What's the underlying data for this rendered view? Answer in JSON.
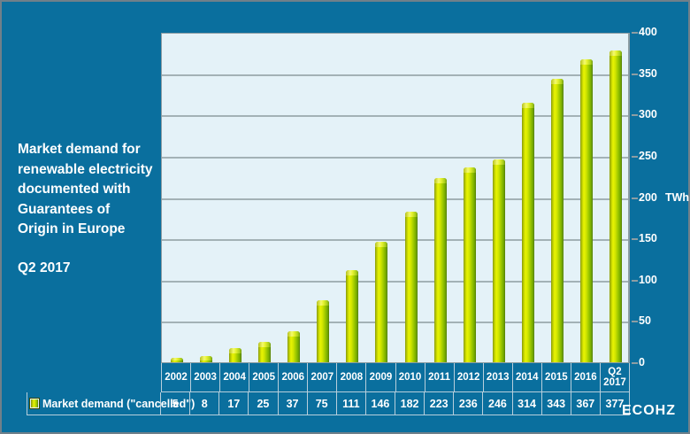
{
  "title": {
    "main": "Market demand for\nrenewable electricity\ndocumented with\nGuarantees of\nOrigin in Europe",
    "period": "Q2 2017"
  },
  "legend": {
    "label": "Market demand (\"cancelled\")"
  },
  "y_axis": {
    "unit": "TWh",
    "tick_values": [
      0,
      50,
      100,
      150,
      200,
      250,
      300,
      350,
      400
    ]
  },
  "logo": "ECOHZ",
  "colors": {
    "background": "#0a6f9e",
    "plot_background": "#e4f2f8",
    "gridline": "#a3b2b6",
    "bar_bright": "#e8f403",
    "bar_dark": "#537c04",
    "table_border": "#b8cfdc",
    "text": "#ffffff"
  },
  "chart_data": {
    "type": "bar",
    "title": "Market demand for renewable electricity documented with Guarantees of Origin in Europe",
    "subtitle": "Q2 2017",
    "categories": [
      "2002",
      "2003",
      "2004",
      "2005",
      "2006",
      "2007",
      "2008",
      "2009",
      "2010",
      "2011",
      "2012",
      "2013",
      "2014",
      "2015",
      "2016",
      "Q2 2017"
    ],
    "series": [
      {
        "name": "Market demand (\"cancelled\")",
        "values": [
          5,
          8,
          17,
          25,
          37,
          75,
          111,
          146,
          182,
          223,
          236,
          246,
          314,
          343,
          367,
          377
        ]
      }
    ],
    "xlabel": "",
    "ylabel": "TWh",
    "ylim": [
      0,
      400
    ],
    "ytick_step": 50,
    "grid": true,
    "legend_position": "bottom-left",
    "data_table_shown": true
  }
}
